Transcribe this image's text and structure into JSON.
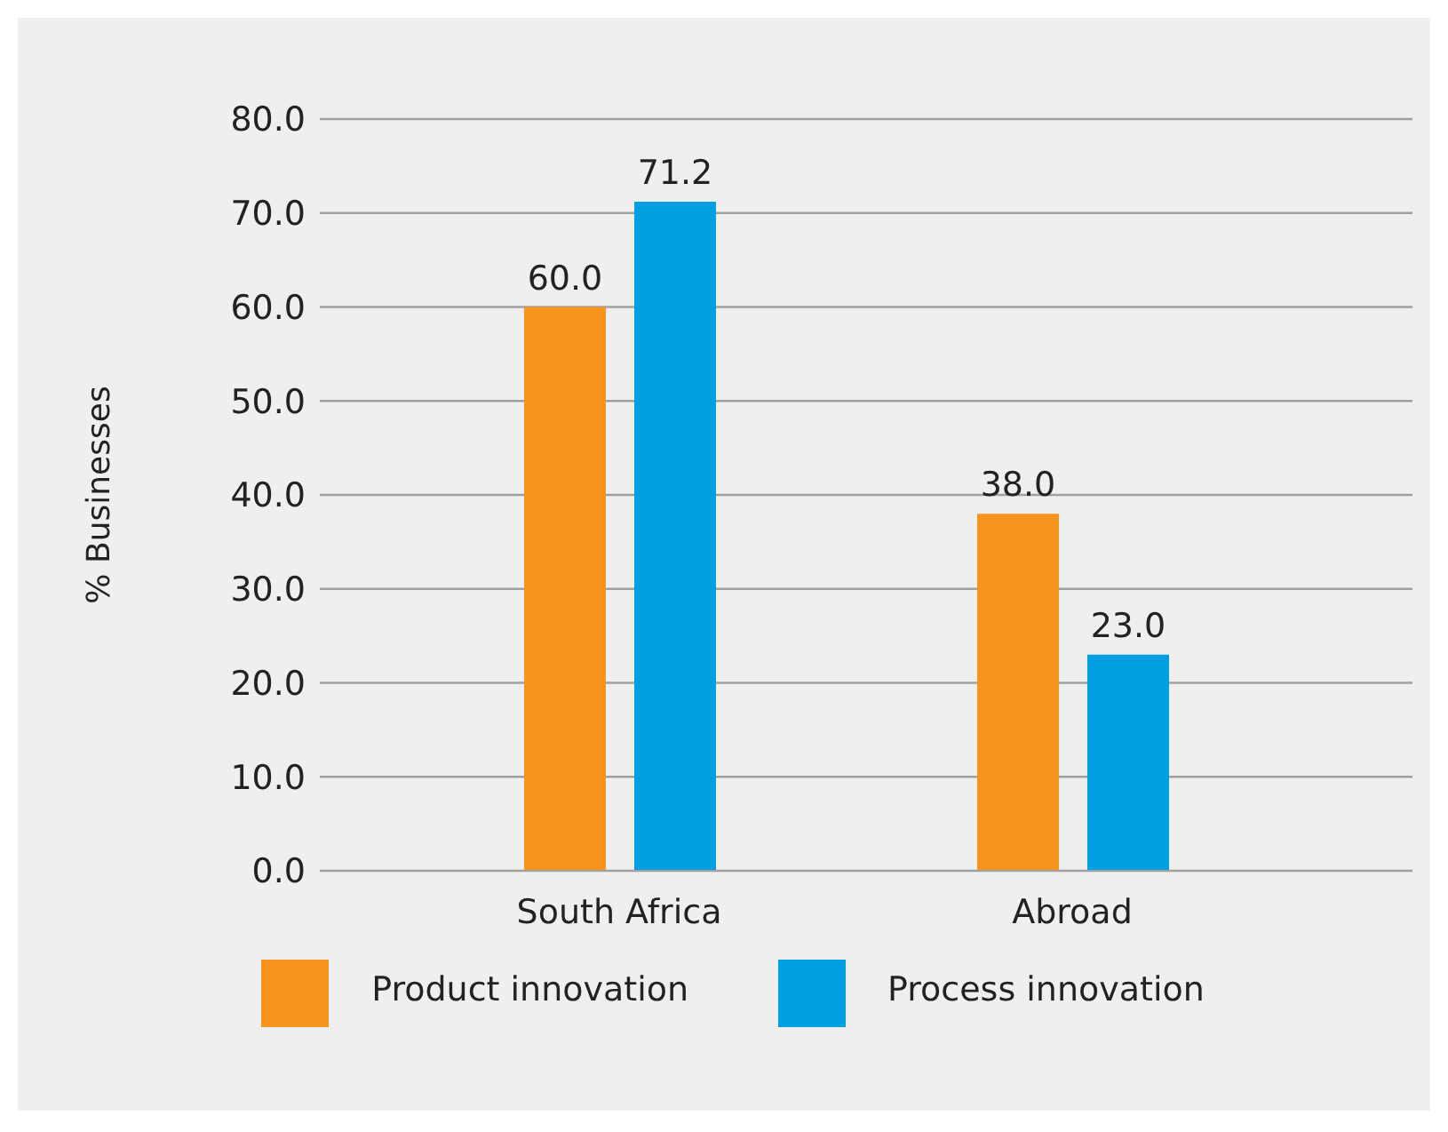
{
  "chart_data": {
    "type": "bar",
    "ylabel": "% Businesses",
    "categories": [
      "South Africa",
      "Abroad"
    ],
    "series": [
      {
        "name": "Product innovation",
        "color": "#f7941d",
        "values": [
          60.0,
          38.0
        ],
        "value_labels": [
          "60.0",
          "38.0"
        ]
      },
      {
        "name": "Process innovation",
        "color": "#00a0e2",
        "values": [
          71.2,
          23.0
        ],
        "value_labels": [
          "71.2",
          "23.0"
        ]
      }
    ],
    "ylim": [
      0,
      80
    ],
    "yticks": [
      {
        "value": 0,
        "label": "0.0"
      },
      {
        "value": 10,
        "label": "10.0"
      },
      {
        "value": 20,
        "label": "20.0"
      },
      {
        "value": 30,
        "label": "30.0"
      },
      {
        "value": 40,
        "label": "40.0"
      },
      {
        "value": 50,
        "label": "50.0"
      },
      {
        "value": 60,
        "label": "60.0"
      },
      {
        "value": 70,
        "label": "70.0"
      },
      {
        "value": 80,
        "label": "80.0"
      }
    ],
    "grid": "y",
    "legend": "bottom"
  }
}
